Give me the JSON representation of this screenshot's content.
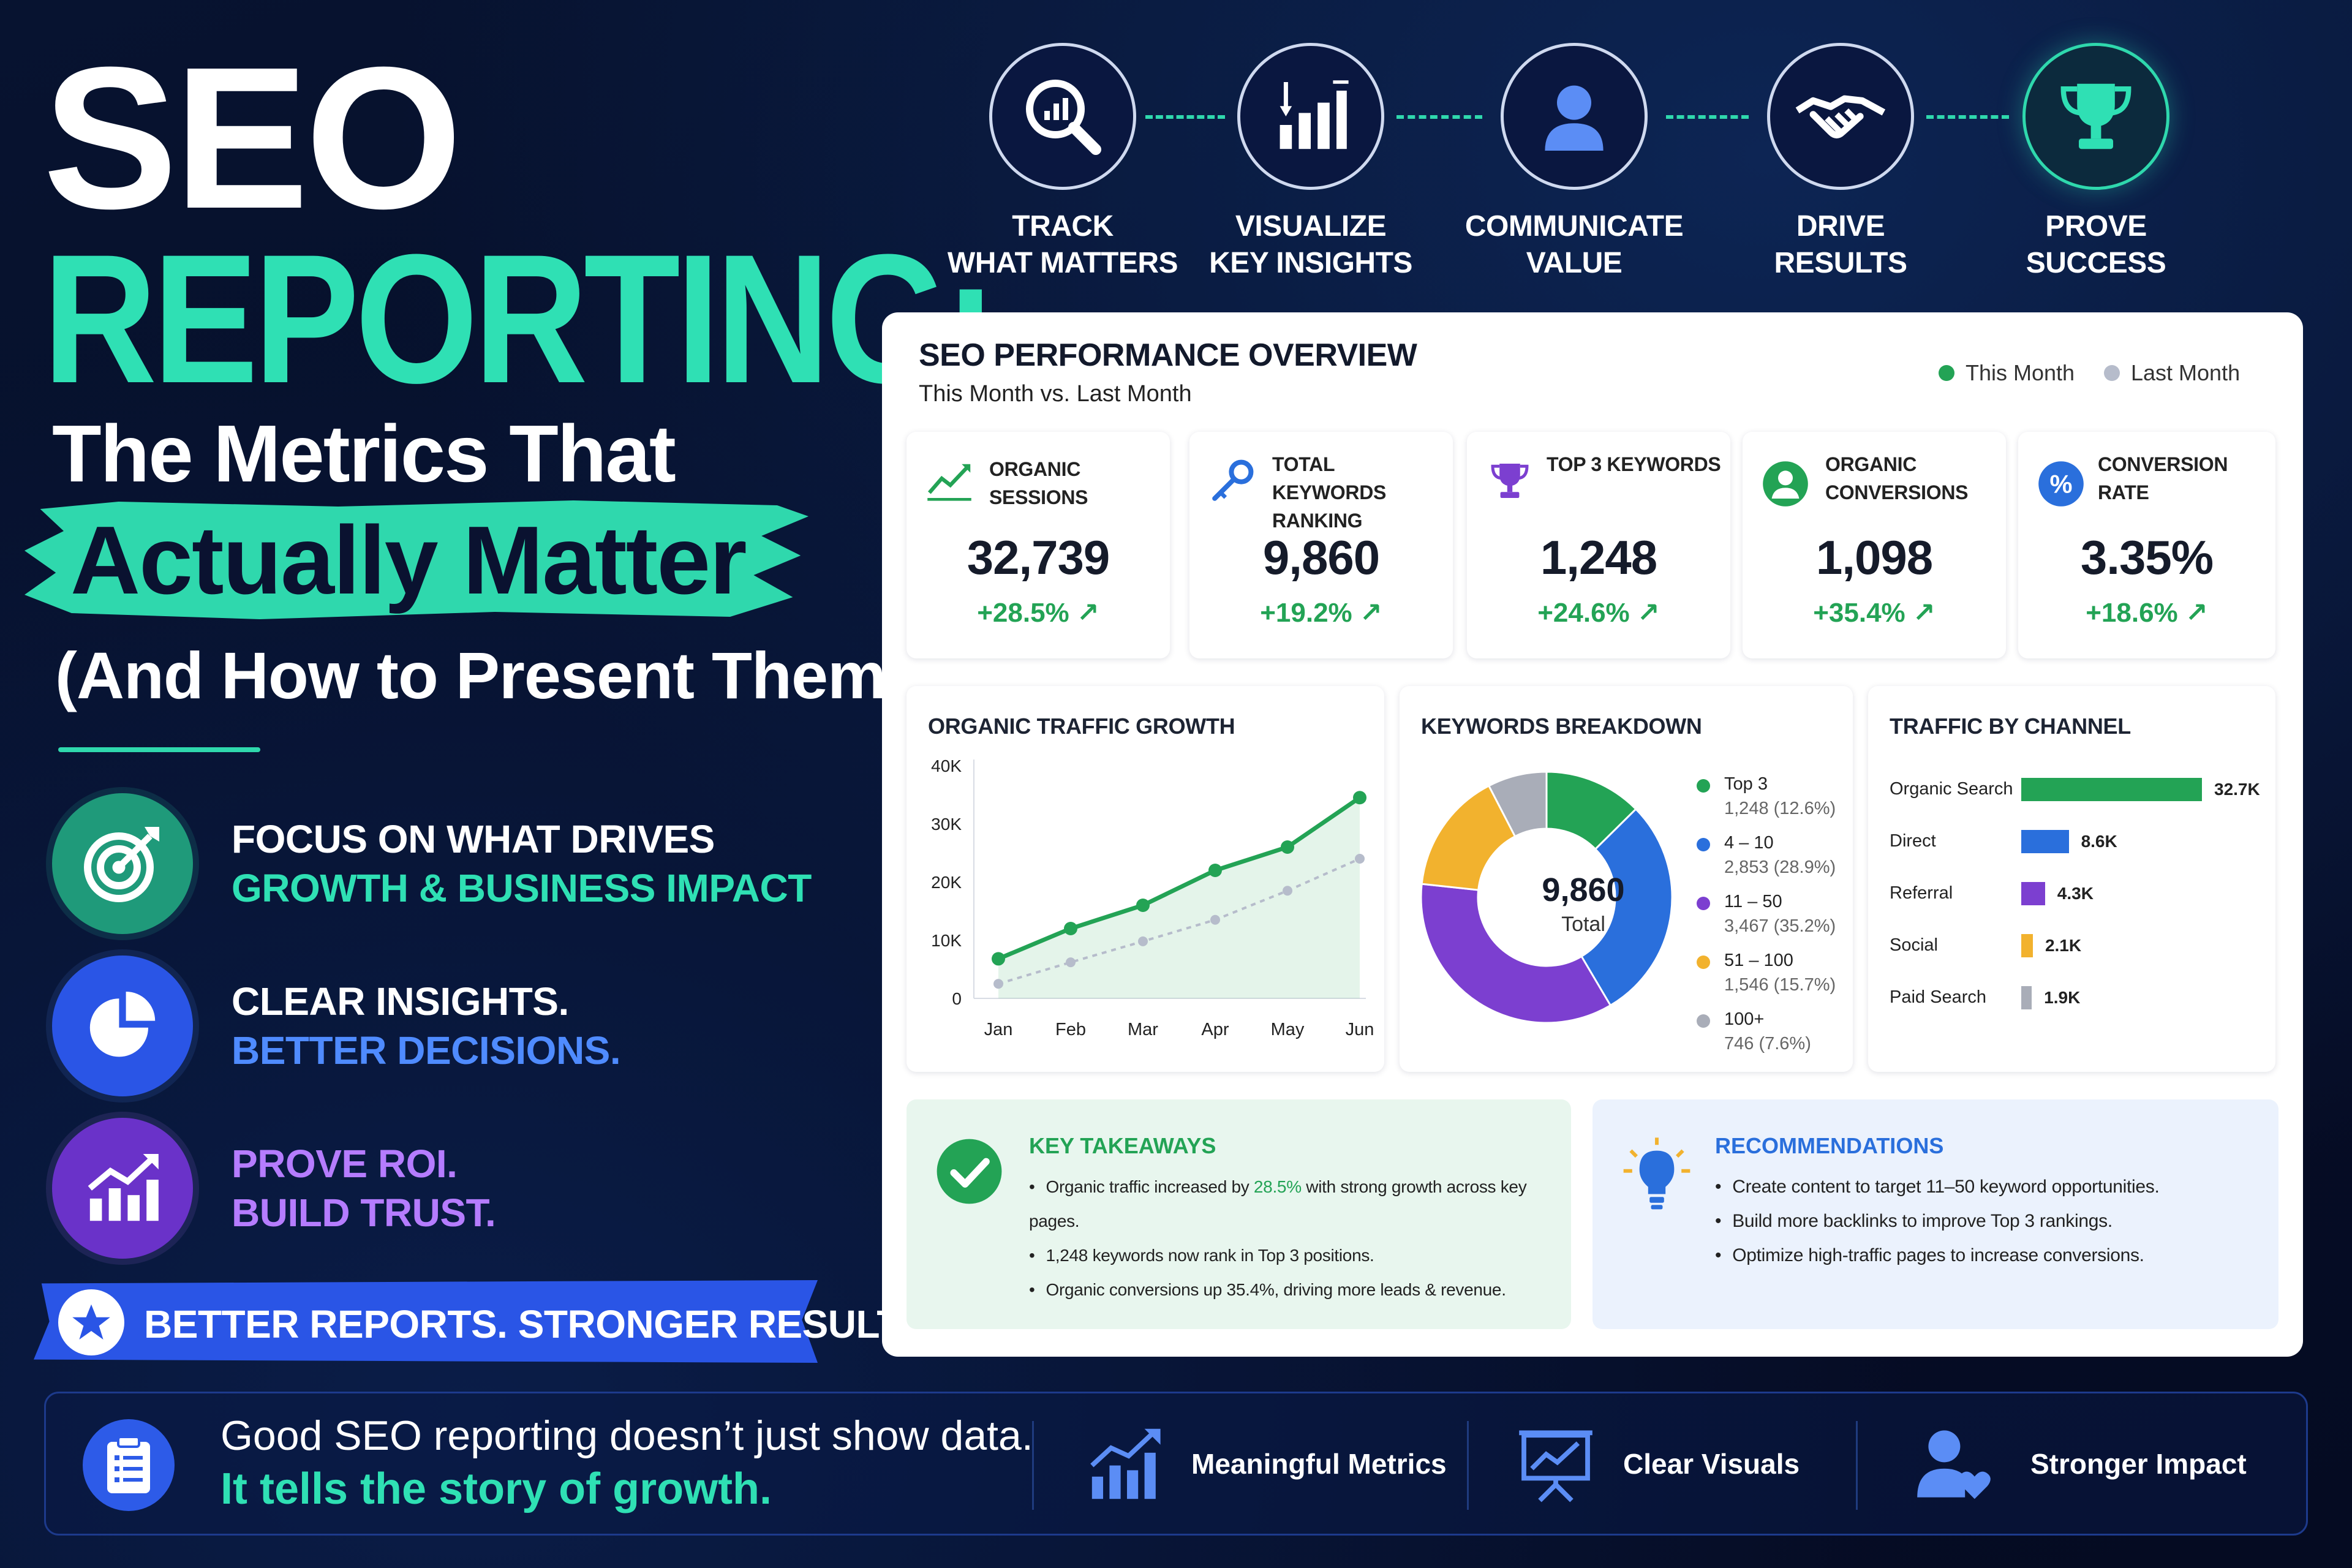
{
  "headline": {
    "line1": "SEO",
    "line2": "REPORTING:",
    "line3": "The Metrics That",
    "line4": "Actually Matter",
    "line5": "(And How to Present Them)"
  },
  "features": [
    {
      "line1": "FOCUS ON WHAT DRIVES",
      "line2": "GROWTH & BUSINESS IMPACT",
      "icon": "target-icon",
      "color": "#1f9a7a",
      "accent": "#2fe0b4"
    },
    {
      "line1": "CLEAR INSIGHTS.",
      "line2": "BETTER DECISIONS.",
      "icon": "pie-chart-icon",
      "color": "#2a55e6",
      "accent": "#4f8bff"
    },
    {
      "line1": "PROVE ROI.",
      "line2": "BUILD TRUST.",
      "icon": "growth-chart-icon",
      "color": "#6a32c9",
      "accent": "#b57cff"
    }
  ],
  "banner": {
    "text": "BETTER REPORTS. STRONGER RESULTS.",
    "icon": "star-icon"
  },
  "steps": [
    {
      "line1": "TRACK",
      "line2": "WHAT MATTERS",
      "icon": "magnifier-chart-icon"
    },
    {
      "line1": "VISUALIZE",
      "line2": "KEY INSIGHTS",
      "icon": "bar-chart-icon"
    },
    {
      "line1": "COMMUNICATE",
      "line2": "VALUE",
      "icon": "person-icon"
    },
    {
      "line1": "DRIVE",
      "line2": "RESULTS",
      "icon": "handshake-icon"
    },
    {
      "line1": "PROVE",
      "line2": "SUCCESS",
      "icon": "trophy-icon"
    }
  ],
  "dashboard": {
    "title": "SEO PERFORMANCE OVERVIEW",
    "subtitle": "This Month vs. Last Month",
    "legend": [
      {
        "label": "This Month",
        "color": "#23a355"
      },
      {
        "label": "Last Month",
        "color": "#b6bccb"
      }
    ],
    "kpis": [
      {
        "label1": "ORGANIC SESSIONS",
        "label2": "",
        "value": "32,739",
        "change": "+28.5% ↗",
        "icon": "trend-line-icon",
        "color": "#23a355"
      },
      {
        "label1": "TOTAL KEYWORDS",
        "label2": "RANKING",
        "value": "9,860",
        "change": "+19.2% ↗",
        "icon": "key-icon",
        "color": "#2a6fdc"
      },
      {
        "label1": "TOP 3 KEYWORDS",
        "label2": "",
        "value": "1,248",
        "change": "+24.6% ↗",
        "icon": "trophy-icon",
        "color": "#7c3fd0"
      },
      {
        "label1": "ORGANIC",
        "label2": "CONVERSIONS",
        "value": "1,098",
        "change": "+35.4% ↗",
        "icon": "user-circle-icon",
        "color": "#23a355"
      },
      {
        "label1": "CONVERSION RATE",
        "label2": "",
        "value": "3.35%",
        "change": "+18.6% ↗",
        "icon": "percent-icon",
        "color": "#2a6fdc"
      }
    ],
    "traffic_title": "ORGANIC TRAFFIC GROWTH",
    "keywords_title": "KEYWORDS BREAKDOWN",
    "donut_total": "9,860",
    "donut_total_label": "Total",
    "channel_title": "TRAFFIC BY CHANNEL",
    "takeaways": {
      "title": "KEY TAKEAWAYS",
      "b1_pre": "Organic traffic increased by ",
      "b1_hl": "28.5%",
      "b1_post": " with strong growth across key pages.",
      "b2": "1,248 keywords now rank in Top 3 positions.",
      "b3": "Organic conversions up 35.4%, driving more leads & revenue.",
      "icon": "check-circle-icon"
    },
    "recommendations": {
      "title": "RECOMMENDATIONS",
      "b1": "Create content to target 11–50 keyword opportunities.",
      "b2": "Build more backlinks to improve Top 3 rankings.",
      "b3": "Optimize high-traffic pages to increase conversions.",
      "icon": "lightbulb-icon"
    }
  },
  "chart_data": [
    {
      "type": "line",
      "title": "ORGANIC TRAFFIC GROWTH",
      "x": [
        "Jan",
        "Feb",
        "Mar",
        "Apr",
        "May",
        "Jun"
      ],
      "yticks": [
        "40K",
        "30K",
        "20K",
        "10K",
        "0"
      ],
      "ylim": [
        0,
        40000
      ],
      "series": [
        {
          "name": "This Month",
          "color": "#23a355",
          "values": [
            6800,
            12000,
            16000,
            22000,
            26000,
            34500
          ]
        },
        {
          "name": "Last Month",
          "color": "#b6bccb",
          "values": [
            2500,
            6200,
            9800,
            13500,
            18500,
            24000
          ]
        }
      ],
      "grid": false
    },
    {
      "type": "pie",
      "title": "KEYWORDS BREAKDOWN",
      "slices": [
        {
          "label": "Top 3",
          "detail": "1,248 (12.6%)",
          "value": 12.6,
          "color": "#23a355"
        },
        {
          "label": "4 – 10",
          "detail": "2,853 (28.9%)",
          "value": 28.9,
          "color": "#2a6fdc"
        },
        {
          "label": "11 – 50",
          "detail": "3,467 (35.2%)",
          "value": 35.2,
          "color": "#7c3fd0"
        },
        {
          "label": "51 – 100",
          "detail": "1,546 (15.7%)",
          "value": 15.7,
          "color": "#f2b22e"
        },
        {
          "label": "100+",
          "detail": "746 (7.6%)",
          "value": 7.6,
          "color": "#a9adb8"
        }
      ]
    },
    {
      "type": "bar",
      "title": "TRAFFIC BY CHANNEL",
      "categories": [
        "Organic Search",
        "Direct",
        "Referral",
        "Social",
        "Paid Search"
      ],
      "values": [
        32.7,
        8.6,
        4.3,
        2.1,
        1.9
      ],
      "labels": [
        "32.7K",
        "8.6K",
        "4.3K",
        "2.1K",
        "1.9K"
      ],
      "colors": [
        "#23a355",
        "#2a6fdc",
        "#7c3fd0",
        "#f2b22e",
        "#a9adb8"
      ]
    }
  ],
  "footer": {
    "line1": "Good SEO reporting doesn’t just show data.",
    "line2": "It tells the story of growth.",
    "icon": "clipboard-icon",
    "items": [
      {
        "label": "Meaningful Metrics",
        "icon": "rising-bars-icon"
      },
      {
        "label": "Clear Visuals",
        "icon": "presentation-board-icon"
      },
      {
        "label": "Stronger Impact",
        "icon": "person-heart-icon"
      }
    ]
  }
}
